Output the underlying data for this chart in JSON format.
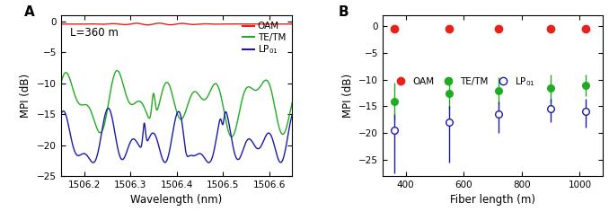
{
  "panel_A": {
    "title_text": "L=360 m",
    "xlabel": "Wavelength (nm)",
    "ylabel": "MPI (dB)",
    "xlim": [
      1506.15,
      1506.65
    ],
    "ylim": [
      -25,
      1
    ],
    "yticks": [
      0,
      -5,
      -10,
      -15,
      -20,
      -25
    ],
    "xticks": [
      1506.2,
      1506.3,
      1506.4,
      1506.5,
      1506.6
    ],
    "oam_color": "#e8221a",
    "tetm_color": "#22aa22",
    "lp01_color": "#1a1aaa"
  },
  "panel_B": {
    "xlabel": "Fiber length (m)",
    "ylabel": "MPI (dB)",
    "xlim": [
      320,
      1080
    ],
    "ylim": [
      -28,
      2
    ],
    "yticks": [
      0,
      -5,
      -10,
      -15,
      -20,
      -25
    ],
    "xticks": [
      400,
      600,
      800,
      1000
    ],
    "oam_color": "#e8221a",
    "tetm_color": "#22aa22",
    "lp01_color": "#1a1aaa",
    "fiber_lengths": [
      360,
      550,
      720,
      900,
      1020
    ],
    "oam_mean": [
      -0.5,
      -0.5,
      -0.5,
      -0.5,
      -0.5
    ],
    "tetm_mean": [
      -14.0,
      -12.5,
      -12.0,
      -11.5,
      -11.0
    ],
    "tetm_err_lo": [
      3.5,
      3.0,
      2.5,
      2.5,
      2.0
    ],
    "tetm_err_hi": [
      3.5,
      3.0,
      2.5,
      2.5,
      2.0
    ],
    "lp01_mean": [
      -19.5,
      -18.0,
      -16.5,
      -15.5,
      -16.0
    ],
    "lp01_err_lo": [
      8.0,
      7.5,
      3.5,
      2.5,
      3.0
    ],
    "lp01_err_hi": [
      3.0,
      3.0,
      2.5,
      2.0,
      2.5
    ]
  }
}
